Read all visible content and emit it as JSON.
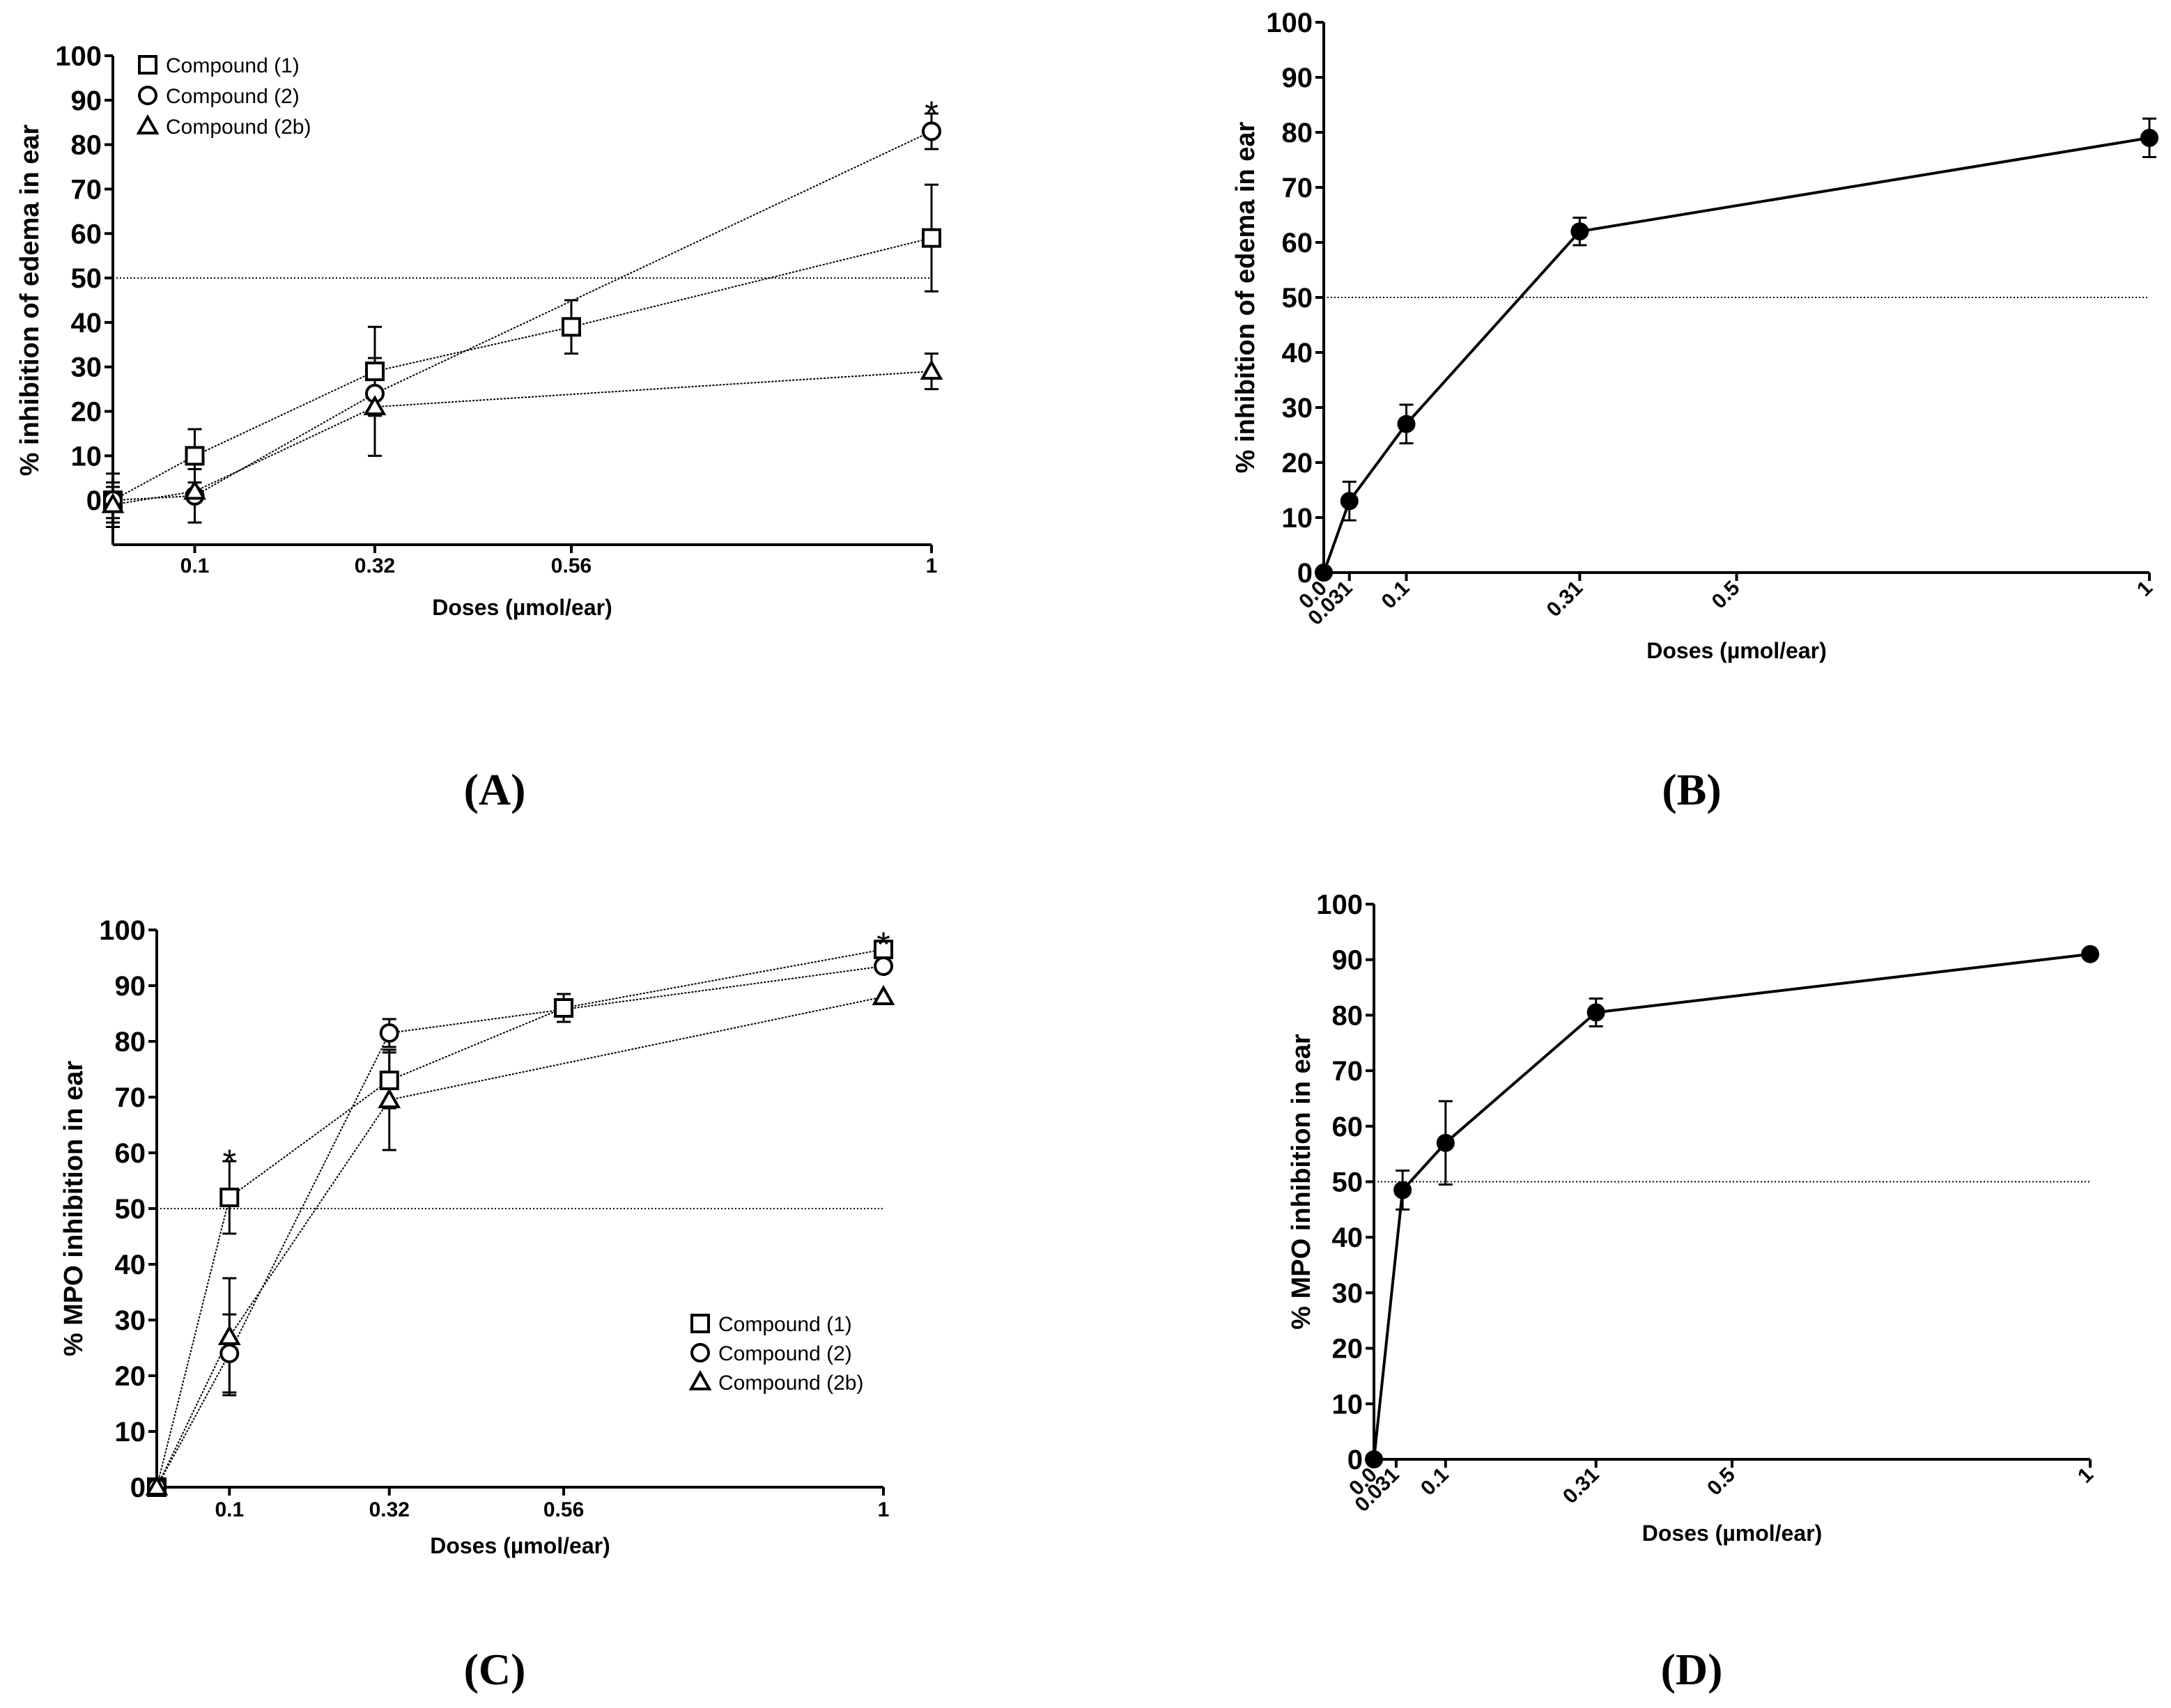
{
  "panels": [
    {
      "id": "A",
      "label": "(A)",
      "chart_data": {
        "type": "line",
        "xlabel": "Doses (µmol/ear)",
        "ylabel": "% inhibition of edema in ear",
        "ylim": [
          -10,
          100
        ],
        "yticks": [
          0,
          10,
          20,
          30,
          40,
          50,
          60,
          70,
          80,
          90,
          100
        ],
        "xticks": [
          {
            "value": 0.1,
            "label": "0.1"
          },
          {
            "value": 0.32,
            "label": "0.32"
          },
          {
            "value": 0.56,
            "label": "0.56"
          },
          {
            "value": 1,
            "label": "1"
          }
        ],
        "reference_line": 50,
        "legend_position": "top-left",
        "series": [
          {
            "name": "Compound (1)",
            "marker": "square",
            "x": [
              0,
              0.1,
              0.32,
              0.56,
              1
            ],
            "y": [
              0,
              10,
              29,
              39,
              59
            ],
            "err": [
              4,
              6,
              10,
              6,
              12
            ]
          },
          {
            "name": "Compound (2)",
            "marker": "circle",
            "x": [
              0,
              0.1,
              0.32,
              1
            ],
            "y": [
              0,
              1,
              24,
              83
            ],
            "err": [
              6,
              6,
              0,
              4
            ]
          },
          {
            "name": "Compound (2b)",
            "marker": "triangle",
            "x": [
              0,
              0.1,
              0.32,
              1
            ],
            "y": [
              -1,
              2,
              21,
              29
            ],
            "err": [
              4,
              0,
              11,
              4
            ]
          }
        ],
        "annotations": [
          {
            "text": "*",
            "x": 1,
            "y": 89
          }
        ]
      }
    },
    {
      "id": "B",
      "label": "(B)",
      "chart_data": {
        "type": "line",
        "xlabel": "Doses (µmol/ear)",
        "ylabel": "% inhibition of edema in ear",
        "ylim": [
          0,
          100
        ],
        "yticks": [
          0,
          10,
          20,
          30,
          40,
          50,
          60,
          70,
          80,
          90,
          100
        ],
        "xticks": [
          {
            "value": 0,
            "label": "0.0"
          },
          {
            "value": 0.031,
            "label": "0.031"
          },
          {
            "value": 0.1,
            "label": "0.1"
          },
          {
            "value": 0.31,
            "label": "0.31"
          },
          {
            "value": 0.5,
            "label": "0.5"
          },
          {
            "value": 1,
            "label": "1"
          }
        ],
        "reference_line": 50,
        "series": [
          {
            "marker": "filled-circle",
            "x": [
              0,
              0.031,
              0.1,
              0.31,
              1
            ],
            "y": [
              0,
              13,
              27,
              62,
              79
            ],
            "err": [
              0,
              3.5,
              3.5,
              2.5,
              3.5
            ]
          }
        ],
        "annotations": []
      }
    },
    {
      "id": "C",
      "label": "(C)",
      "chart_data": {
        "type": "line",
        "xlabel": "Doses (µmol/ear)",
        "ylabel": "% MPO inhibition in ear",
        "ylim": [
          0,
          100
        ],
        "yticks": [
          0,
          10,
          20,
          30,
          40,
          50,
          60,
          70,
          80,
          90,
          100
        ],
        "xticks": [
          {
            "value": 0.1,
            "label": "0.1"
          },
          {
            "value": 0.32,
            "label": "0.32"
          },
          {
            "value": 0.56,
            "label": "0.56"
          },
          {
            "value": 1,
            "label": "1"
          }
        ],
        "reference_line": 50,
        "legend_position": "bottom-right",
        "series": [
          {
            "name": "Compound (1)",
            "marker": "square",
            "x": [
              0,
              0.1,
              0.32,
              0.56,
              1
            ],
            "y": [
              0,
              52,
              73,
              86,
              96.5
            ],
            "err": [
              0,
              6.5,
              5,
              2.5,
              0
            ]
          },
          {
            "name": "Compound (2)",
            "marker": "circle",
            "x": [
              0,
              0.1,
              0.32,
              1
            ],
            "y": [
              0,
              24,
              81.5,
              93.5
            ],
            "err": [
              0,
              7,
              2.5,
              0
            ]
          },
          {
            "name": "Compound (2b)",
            "marker": "triangle",
            "x": [
              0,
              0.1,
              0.32,
              1
            ],
            "y": [
              0,
              27,
              69.5,
              88
            ],
            "err": [
              0,
              10.5,
              9,
              0
            ]
          }
        ],
        "annotations": [
          {
            "text": "*",
            "x": 0.1,
            "y": 60
          },
          {
            "text": "*",
            "x": 1,
            "y": 99
          }
        ]
      }
    },
    {
      "id": "D",
      "label": "(D)",
      "chart_data": {
        "type": "line",
        "xlabel": "Doses (µmol/ear)",
        "ylabel": "% MPO inhibition in ear",
        "ylim": [
          0,
          100
        ],
        "yticks": [
          0,
          10,
          20,
          30,
          40,
          50,
          60,
          70,
          80,
          90,
          100
        ],
        "xticks": [
          {
            "value": 0,
            "label": "0.0"
          },
          {
            "value": 0.031,
            "label": "0.031"
          },
          {
            "value": 0.1,
            "label": "0.1"
          },
          {
            "value": 0.31,
            "label": "0.31"
          },
          {
            "value": 0.5,
            "label": "0.5"
          },
          {
            "value": 1,
            "label": "1"
          }
        ],
        "reference_line": 50,
        "series": [
          {
            "marker": "filled-circle",
            "x": [
              0,
              0.04,
              0.1,
              0.31,
              1
            ],
            "y": [
              0,
              48.5,
              57,
              80.5,
              91
            ],
            "err": [
              0,
              3.5,
              7.5,
              2.5,
              0
            ]
          }
        ],
        "annotations": []
      }
    }
  ]
}
